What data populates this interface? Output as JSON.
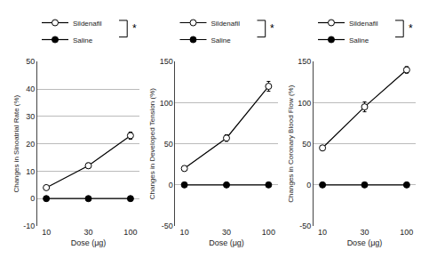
{
  "chart_data": [
    {
      "type": "line",
      "xlabel": "Dose (μg)",
      "ylabel": "Changes in Sinoatrial Rate (%)",
      "categories": [
        "10",
        "30",
        "100"
      ],
      "ylim": [
        -10,
        50
      ],
      "yticks": [
        -10,
        0,
        10,
        20,
        30,
        40,
        50
      ],
      "grid": true,
      "legend": "upper left",
      "annotations": [
        "*"
      ],
      "series": [
        {
          "name": "Sildenafil",
          "color": "black",
          "marker": "circle-open",
          "values": [
            4,
            12,
            23
          ],
          "errors": [
            0.7,
            1.0,
            1.3
          ]
        },
        {
          "name": "Saline",
          "color": "black",
          "marker": "circle",
          "values": [
            0,
            0,
            0
          ],
          "errors": [
            0.15,
            0.15,
            0.15
          ]
        }
      ]
    },
    {
      "type": "line",
      "xlabel": "Dose (μg)",
      "ylabel": "Changes in Developed Tension (%)",
      "categories": [
        "10",
        "30",
        "100"
      ],
      "ylim": [
        -50,
        150
      ],
      "yticks": [
        -50,
        0,
        50,
        100,
        150
      ],
      "grid": true,
      "legend": "upper left",
      "annotations": [
        "*"
      ],
      "series": [
        {
          "name": "Sildenafil",
          "color": "black",
          "marker": "circle-open",
          "values": [
            20,
            57,
            120
          ],
          "errors": [
            2.5,
            4,
            6
          ]
        },
        {
          "name": "Saline",
          "color": "black",
          "marker": "circle",
          "values": [
            0,
            0,
            0
          ],
          "errors": [
            0.2,
            0.2,
            0.2
          ]
        }
      ]
    },
    {
      "type": "line",
      "xlabel": "Dose (μg)",
      "ylabel": "Changes in Coronary Blood Flow (%)",
      "categories": [
        "10",
        "30",
        "100"
      ],
      "ylim": [
        -50,
        150
      ],
      "yticks": [
        -50,
        0,
        50,
        100,
        150
      ],
      "grid": true,
      "legend": "upper left",
      "annotations": [
        "*"
      ],
      "series": [
        {
          "name": "Sildenafil",
          "color": "black",
          "marker": "circle-open",
          "values": [
            45,
            95,
            140
          ],
          "errors": [
            3,
            6,
            4
          ]
        },
        {
          "name": "Saline",
          "color": "black",
          "marker": "circle",
          "values": [
            0,
            0,
            0
          ],
          "errors": [
            0.2,
            0.2,
            0.2
          ]
        }
      ]
    }
  ]
}
